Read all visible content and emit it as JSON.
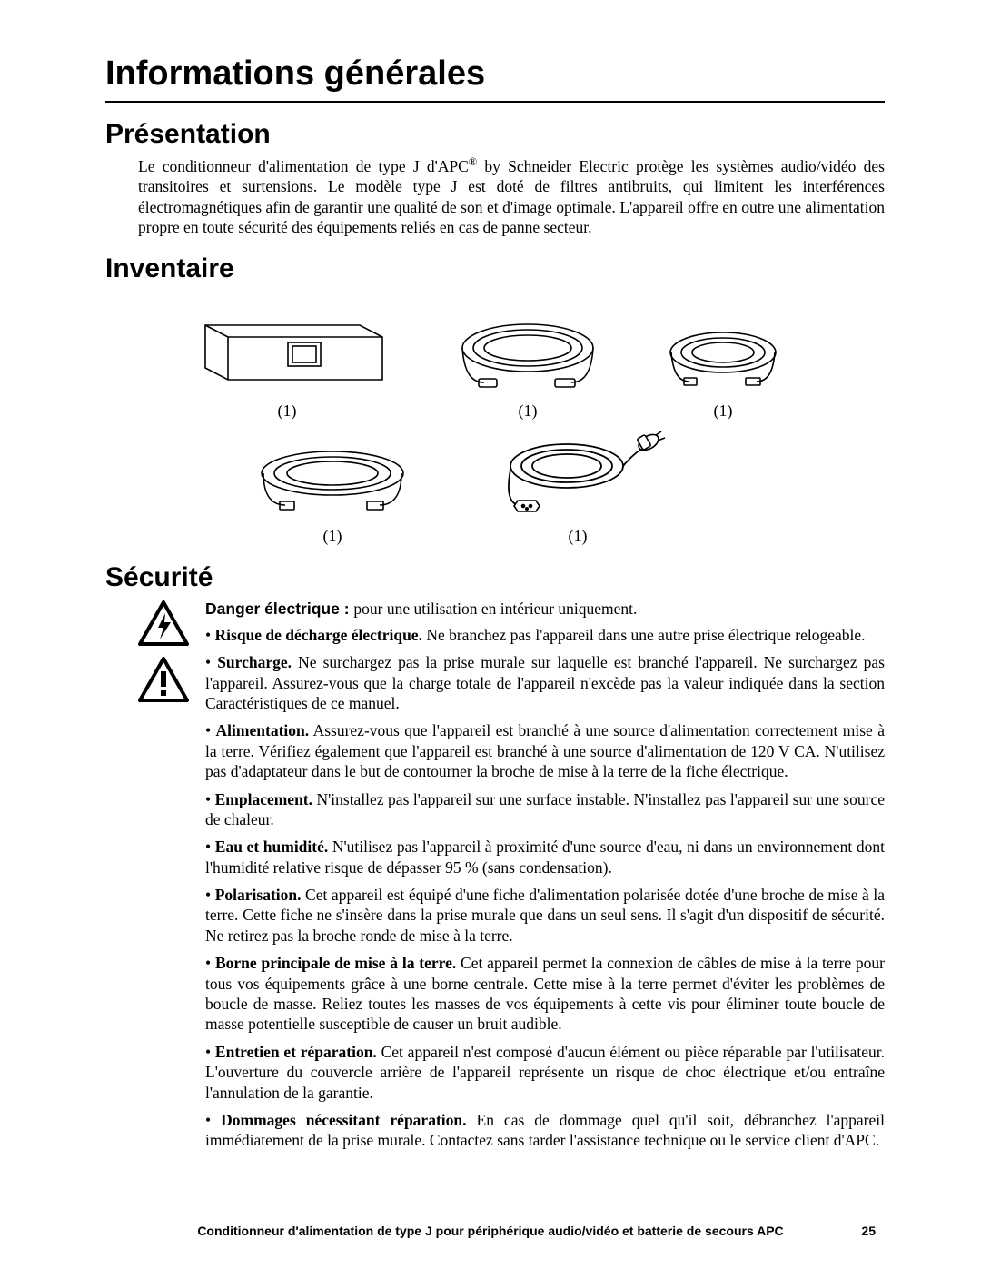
{
  "title": "Informations générales",
  "presentation_heading": "Présentation",
  "presentation_body_prefix": "Le conditionneur d'alimentation de type J d'APC",
  "presentation_body_suffix": " by Schneider Electric protège les systèmes audio/vidéo des transitoires et surtensions. Le modèle type J est doté de filtres antibruits, qui limitent les interférences électromagnétiques afin de garantir une qualité de son et d'image optimale. L'appareil offre en outre une alimentation propre en toute sécurité des équipements reliés en cas de panne secteur.",
  "registered_mark": "®",
  "inventory_heading": "Inventaire",
  "inventory_qty": "(1)",
  "security_heading": "Sécurité",
  "danger_label": "Danger électrique : ",
  "danger_text": "pour une utilisation en intérieur uniquement.",
  "bullets": [
    {
      "lead": "Risque de décharge électrique.",
      "text": " Ne branchez pas l'appareil dans une autre prise électrique relogeable."
    },
    {
      "lead": "Surcharge.",
      "text": " Ne surchargez pas la prise murale sur laquelle est branché l'appareil. Ne surchargez pas l'appareil. Assurez-vous que la charge totale de l'appareil n'excède pas la valeur indiquée dans la section Caractéristiques de ce manuel."
    },
    {
      "lead": "Alimentation.",
      "text": " Assurez-vous que l'appareil est branché à une source d'alimentation correctement mise à la terre. Vérifiez également que l'appareil est branché à une source d'alimentation de 120 V CA. N'utilisez pas d'adaptateur dans le but de contourner la broche de mise à la terre de la fiche électrique."
    },
    {
      "lead": "Emplacement.",
      "text": " N'installez pas l'appareil sur une surface instable. N'installez pas l'appareil sur une source de chaleur."
    },
    {
      "lead": "Eau et humidité.",
      "text": " N'utilisez pas l'appareil à proximité d'une source d'eau, ni dans un environnement dont l'humidité relative risque de dépasser 95 % (sans condensation)."
    },
    {
      "lead": "Polarisation.",
      "text": " Cet appareil est équipé d'une fiche d'alimentation polarisée dotée d'une broche de mise à la terre. Cette fiche ne s'insère dans la prise murale que dans un seul sens. Il s'agit d'un dispositif de sécurité. Ne retirez pas la broche ronde de mise à la terre."
    },
    {
      "lead": "Borne principale de mise à la terre.",
      "text": " Cet appareil permet la connexion de câbles de mise à la terre pour tous vos équipements grâce à une borne centrale. Cette mise à la terre permet d'éviter les problèmes de boucle de masse. Reliez toutes les masses de vos équipements à cette vis pour éliminer toute boucle de masse potentielle susceptible de causer un bruit audible."
    },
    {
      "lead": "Entretien et réparation.",
      "text": " Cet appareil n'est composé d'aucun élément ou pièce réparable par l'utilisateur. L'ouverture du couvercle arrière de l'appareil représente un risque de choc électrique et/ou entraîne l'annulation de la garantie."
    },
    {
      "lead": "Dommages nécessitant réparation.",
      "text": " En cas de dommage quel qu'il soit, débranchez l'appareil immédiatement de la prise murale. Contactez sans tarder l'assistance technique ou le service client d'APC."
    }
  ],
  "footer_text": "Conditionneur d'alimentation de type J pour périphérique audio/vidéo et batterie de secours APC",
  "page_number": "25",
  "colors": {
    "stroke": "#000000",
    "bg": "#ffffff"
  }
}
